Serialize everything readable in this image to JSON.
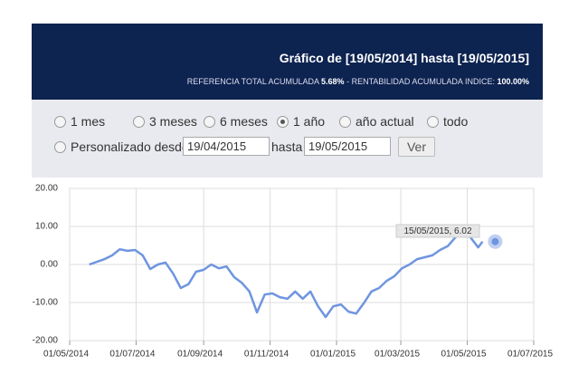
{
  "header": {
    "title": "Gráfico de [19/05/2014] hasta [19/05/2015]",
    "subtitle": [
      "REFERENCIA TOTAL ACUMULADA",
      "5.68%",
      "- RENTABILIDAD ACUMULADA INDICE:",
      "100.00%"
    ]
  },
  "options": {
    "labels": [
      "1 mes",
      "3 meses",
      "6 meses",
      "1 año",
      "año actual",
      "todo"
    ],
    "selected": 3
  },
  "custom": {
    "label": "Personalizado desde",
    "from": "19/04/2015",
    "to_label": "hasta",
    "to": "19/05/2015",
    "button": "Ver"
  },
  "chart_data": {
    "type": "line",
    "color": "#6f95e0",
    "x": [
      "19/05/2014",
      "26/05/2014",
      "02/06/2014",
      "09/06/2014",
      "16/06/2014",
      "23/06/2014",
      "30/06/2014",
      "07/07/2014",
      "14/07/2014",
      "21/07/2014",
      "28/07/2014",
      "04/08/2014",
      "11/08/2014",
      "18/08/2014",
      "25/08/2014",
      "01/09/2014",
      "08/09/2014",
      "15/09/2014",
      "22/09/2014",
      "29/09/2014",
      "06/10/2014",
      "13/10/2014",
      "20/10/2014",
      "27/10/2014",
      "03/11/2014",
      "10/11/2014",
      "17/11/2014",
      "24/11/2014",
      "01/12/2014",
      "08/12/2014",
      "15/12/2014",
      "22/12/2014",
      "29/12/2014",
      "05/01/2015",
      "12/01/2015",
      "19/01/2015",
      "26/01/2015",
      "02/02/2015",
      "09/02/2015",
      "16/02/2015",
      "23/02/2015",
      "02/03/2015",
      "09/03/2015",
      "16/03/2015",
      "23/03/2015",
      "30/03/2015",
      "06/04/2015",
      "13/04/2015",
      "20/04/2015",
      "27/04/2015",
      "04/05/2015",
      "11/05/2015",
      "15/05/2015"
    ],
    "values": [
      0,
      0.7,
      1.4,
      2.4,
      4.0,
      3.6,
      3.8,
      2.4,
      -1.2,
      0,
      0.5,
      -2.4,
      -6.2,
      -5.2,
      -1.9,
      -1.4,
      0,
      -1.0,
      -0.5,
      -3.3,
      -4.8,
      -7.1,
      -12.6,
      -7.9,
      -7.6,
      -8.6,
      -9.0,
      -7.1,
      -9.0,
      -7.1,
      -11.0,
      -13.8,
      -11.0,
      -10.5,
      -12.4,
      -12.9,
      -10.2,
      -7.1,
      -6.2,
      -4.3,
      -3.1,
      -1.0,
      0,
      1.4,
      1.9,
      2.4,
      3.8,
      4.8,
      7.1,
      9.0,
      7.1,
      4.5,
      6.02
    ],
    "tooltip": "15/05/2015, 6.02",
    "xlim": [
      "01/05/2014",
      "01/07/2015"
    ],
    "xticks": [
      "01/05/2014",
      "01/07/2014",
      "01/09/2014",
      "01/11/2014",
      "01/01/2015",
      "01/03/2015",
      "01/05/2015",
      "01/07/2015"
    ],
    "ylim": [
      -20,
      20
    ],
    "yticks": [
      {
        "value": -20,
        "label": "-20.00"
      },
      {
        "value": -10,
        "label": "-10.00"
      },
      {
        "value": 0,
        "label": "0.00"
      },
      {
        "value": 10,
        "label": "10.00"
      },
      {
        "value": 20,
        "label": "20.00"
      }
    ],
    "grid": true
  }
}
